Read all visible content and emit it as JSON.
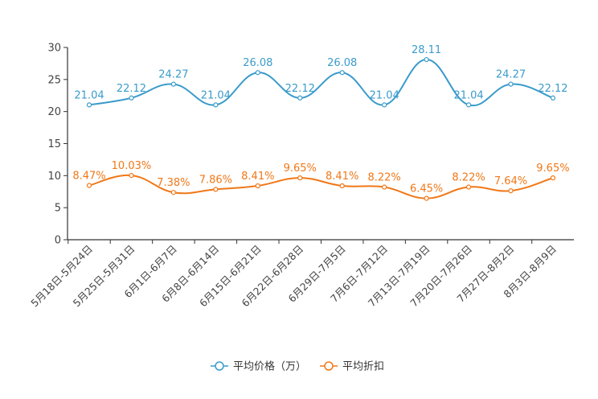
{
  "chart_data": {
    "type": "line",
    "title": "",
    "xlabel": "",
    "ylabel": "",
    "ylim": [
      0,
      30
    ],
    "yticks": [
      0,
      5,
      10,
      15,
      20,
      25,
      30
    ],
    "grid": false,
    "legend_position": "bottom-center",
    "categories": [
      "5月18日-5月24日",
      "5月25日-5月31日",
      "6月1日-6月7日",
      "6月8日-6月14日",
      "6月15日-6月21日",
      "6月22日-6月28日",
      "6月29日-7月5日",
      "7月6日-7月12日",
      "7月13日-7月19日",
      "7月20日-7月26日",
      "7月27日-8月2日",
      "8月3日-8月9日"
    ],
    "series": [
      {
        "name": "平均价格（万）",
        "color": "#3a9bcb",
        "values": [
          21.04,
          22.12,
          24.27,
          21.04,
          26.08,
          22.12,
          26.08,
          21.04,
          28.11,
          21.04,
          24.27,
          22.12
        ],
        "labels": [
          "21.04",
          "22.12",
          "24.27",
          "21.04",
          "26.08",
          "22.12",
          "26.08",
          "21.04",
          "28.11",
          "21.04",
          "24.27",
          "22.12"
        ]
      },
      {
        "name": "平均折扣",
        "color": "#f07818",
        "values": [
          8.47,
          10.03,
          7.38,
          7.86,
          8.41,
          9.65,
          8.41,
          8.22,
          6.45,
          8.22,
          7.64,
          9.65
        ],
        "labels": [
          "8.47%",
          "10.03%",
          "7.38%",
          "7.86%",
          "8.41%",
          "9.65%",
          "8.41%",
          "8.22%",
          "6.45%",
          "8.22%",
          "7.64%",
          "9.65%"
        ]
      }
    ]
  }
}
